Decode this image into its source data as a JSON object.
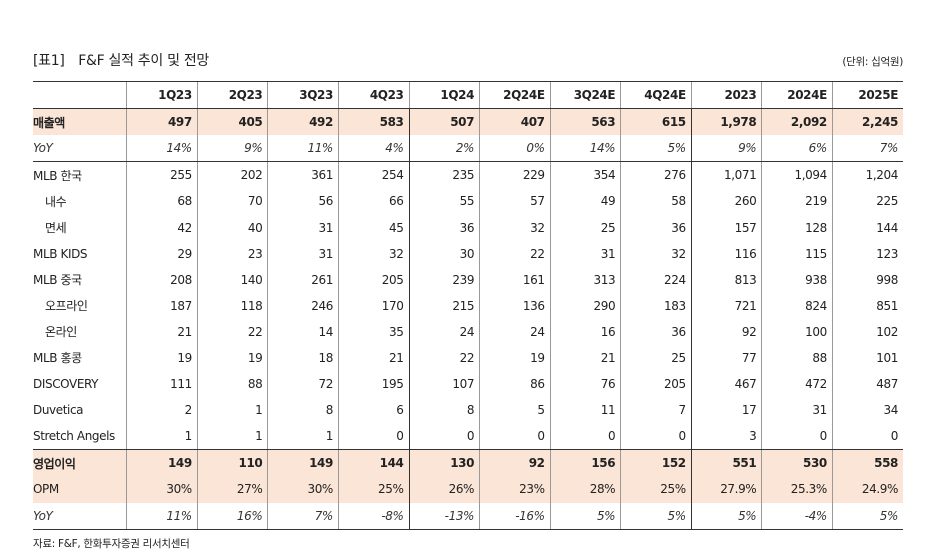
{
  "header": {
    "title": "[표1]　F&F 실적 추이 및 전망",
    "unit": "(단위: 십억원)"
  },
  "columns": [
    "1Q23",
    "2Q23",
    "3Q23",
    "4Q23",
    "1Q24",
    "2Q24E",
    "3Q24E",
    "4Q24E",
    "2023",
    "2024E",
    "2025E"
  ],
  "rows": [
    {
      "label": "매출액",
      "values": [
        "497",
        "405",
        "492",
        "583",
        "507",
        "407",
        "563",
        "615",
        "1,978",
        "2,092",
        "2,245"
      ]
    },
    {
      "label": "YoY",
      "values": [
        "14%",
        "9%",
        "11%",
        "4%",
        "2%",
        "0%",
        "14%",
        "5%",
        "9%",
        "6%",
        "7%"
      ]
    },
    {
      "label": "MLB 한국",
      "values": [
        "255",
        "202",
        "361",
        "254",
        "235",
        "229",
        "354",
        "276",
        "1,071",
        "1,094",
        "1,204"
      ]
    },
    {
      "label": "내수",
      "values": [
        "68",
        "70",
        "56",
        "66",
        "55",
        "57",
        "49",
        "58",
        "260",
        "219",
        "225"
      ]
    },
    {
      "label": "면세",
      "values": [
        "42",
        "40",
        "31",
        "45",
        "36",
        "32",
        "25",
        "36",
        "157",
        "128",
        "144"
      ]
    },
    {
      "label": "MLB KIDS",
      "values": [
        "29",
        "23",
        "31",
        "32",
        "30",
        "22",
        "31",
        "32",
        "116",
        "115",
        "123"
      ]
    },
    {
      "label": "MLB 중국",
      "values": [
        "208",
        "140",
        "261",
        "205",
        "239",
        "161",
        "313",
        "224",
        "813",
        "938",
        "998"
      ]
    },
    {
      "label": "오프라인",
      "values": [
        "187",
        "118",
        "246",
        "170",
        "215",
        "136",
        "290",
        "183",
        "721",
        "824",
        "851"
      ]
    },
    {
      "label": "온라인",
      "values": [
        "21",
        "22",
        "14",
        "35",
        "24",
        "24",
        "16",
        "36",
        "92",
        "100",
        "102"
      ]
    },
    {
      "label": "MLB 홍콩",
      "values": [
        "19",
        "19",
        "18",
        "21",
        "22",
        "19",
        "21",
        "25",
        "77",
        "88",
        "101"
      ]
    },
    {
      "label": "DISCOVERY",
      "values": [
        "111",
        "88",
        "72",
        "195",
        "107",
        "86",
        "76",
        "205",
        "467",
        "472",
        "487"
      ]
    },
    {
      "label": "Duvetica",
      "values": [
        "2",
        "1",
        "8",
        "6",
        "8",
        "5",
        "11",
        "7",
        "17",
        "31",
        "34"
      ]
    },
    {
      "label": "Stretch Angels",
      "values": [
        "1",
        "1",
        "1",
        "0",
        "0",
        "0",
        "0",
        "0",
        "3",
        "0",
        "0"
      ]
    },
    {
      "label": "영업이익",
      "values": [
        "149",
        "110",
        "149",
        "144",
        "130",
        "92",
        "156",
        "152",
        "551",
        "530",
        "558"
      ]
    },
    {
      "label": "OPM",
      "values": [
        "30%",
        "27%",
        "30%",
        "25%",
        "26%",
        "23%",
        "28%",
        "25%",
        "27.9%",
        "25.3%",
        "24.9%"
      ]
    },
    {
      "label": "YoY",
      "values": [
        "11%",
        "16%",
        "7%",
        "-8%",
        "-13%",
        "-16%",
        "5%",
        "5%",
        "5%",
        "-4%",
        "5%"
      ]
    }
  ],
  "footer": {
    "source": "자료: F&F, 한화투자증권 리서치센터"
  }
}
